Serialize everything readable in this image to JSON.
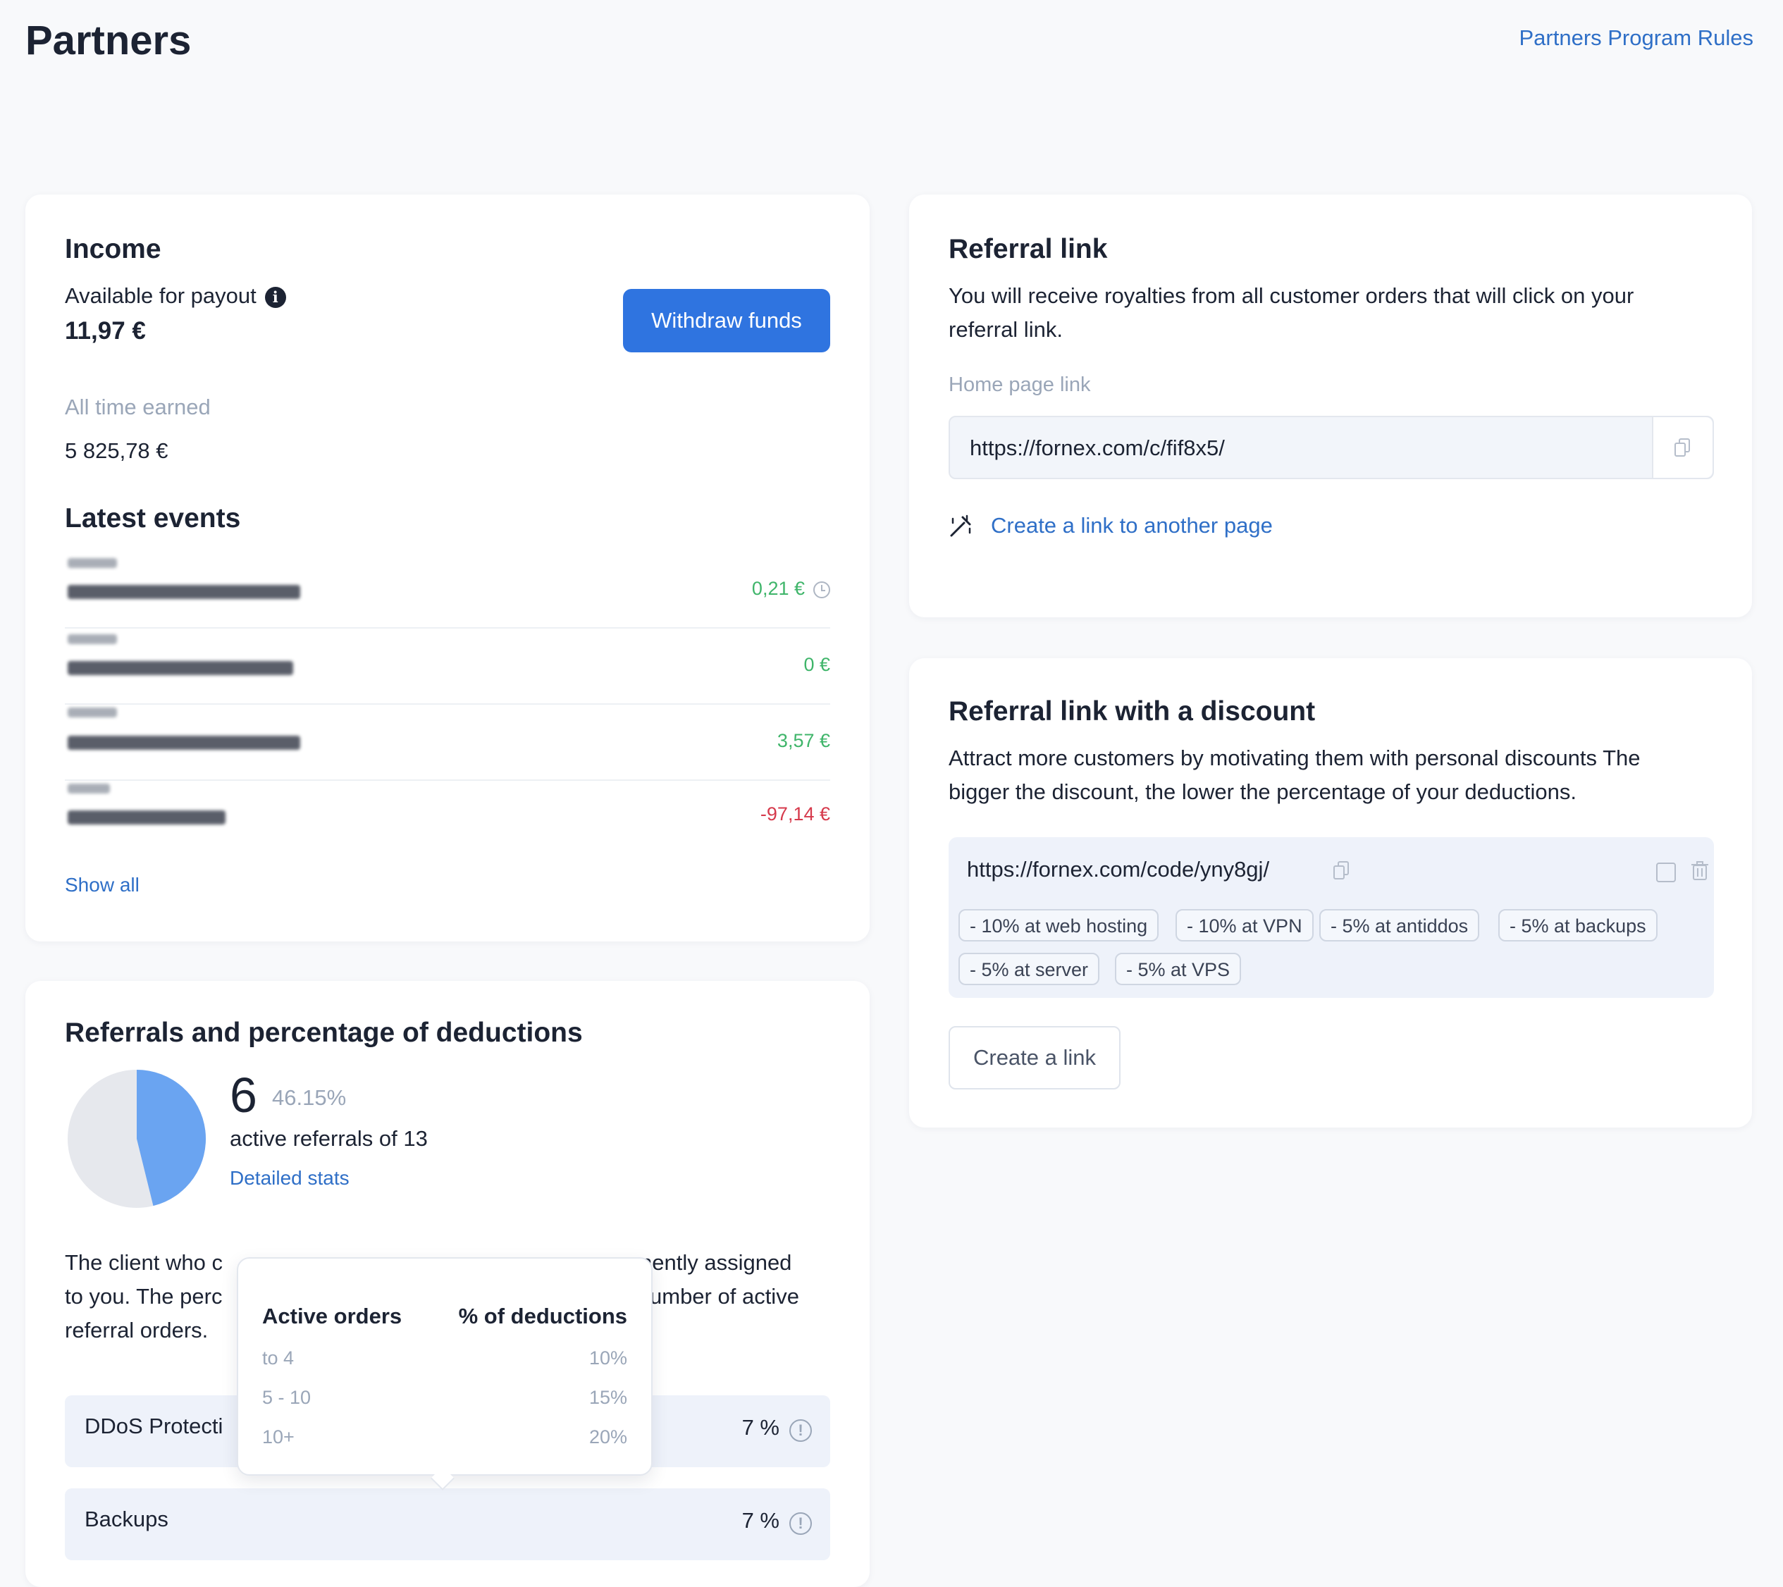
{
  "page": {
    "title": "Partners",
    "rules_link": "Partners Program Rules"
  },
  "income": {
    "title": "Income",
    "available_label": "Available for payout",
    "available_value": "11,97 €",
    "withdraw_button": "Withdraw funds",
    "all_time_label": "All time earned",
    "all_time_value": "5 825,78 €",
    "latest_events_title": "Latest events",
    "events": [
      {
        "amount": "0,21 €",
        "kind": "positive",
        "pending": true
      },
      {
        "amount": "0 €",
        "kind": "positive",
        "pending": false
      },
      {
        "amount": "3,57 €",
        "kind": "positive",
        "pending": false
      },
      {
        "amount": "-97,14 €",
        "kind": "negative",
        "pending": false
      }
    ],
    "show_all": "Show all",
    "colors": {
      "positive": "#3fb56a",
      "negative": "#d63a4c",
      "accent": "#2f74e0"
    }
  },
  "referrals": {
    "title": "Referrals and percentage of deductions",
    "active_count": "6",
    "active_percent": "46.15%",
    "active_fraction": 0.4615,
    "active_text": "active referrals of 13",
    "detailed_stats": "Detailed stats",
    "description_lines": [
      "The client who c",
      "to you. The perc",
      "referral orders."
    ],
    "description_right_lines": [
      "nently assigned",
      "umber of active"
    ],
    "services": [
      {
        "name": "DDoS Protecti",
        "value": "7 %"
      },
      {
        "name": "Backups",
        "value": "7 %"
      }
    ],
    "tooltip": {
      "col_orders": "Active orders",
      "col_deductions": "% of deductions",
      "rows": [
        {
          "orders": "to 4",
          "deduction": "10%"
        },
        {
          "orders": "5 - 10",
          "deduction": "15%"
        },
        {
          "orders": "10+",
          "deduction": "20%"
        }
      ]
    }
  },
  "referral_link": {
    "title": "Referral link",
    "description_lines": [
      "You will receive royalties from all customer orders that will click on your",
      "referral link."
    ],
    "home_label": "Home page link",
    "home_url": "https://fornex.com/c/fif8x5/",
    "create_other": "Create a link to another page"
  },
  "discount_link": {
    "title": "Referral link with a discount",
    "description_lines": [
      "Attract more customers by motivating them with personal discounts The",
      "bigger the discount, the lower the percentage of your deductions."
    ],
    "url": "https://fornex.com/code/yny8gj/",
    "chips": [
      "- 10% at web hosting",
      "- 10% at VPN",
      "- 5% at antiddos",
      "- 5% at backups",
      "- 5% at server",
      "- 5% at VPS"
    ],
    "create_button": "Create a link"
  }
}
